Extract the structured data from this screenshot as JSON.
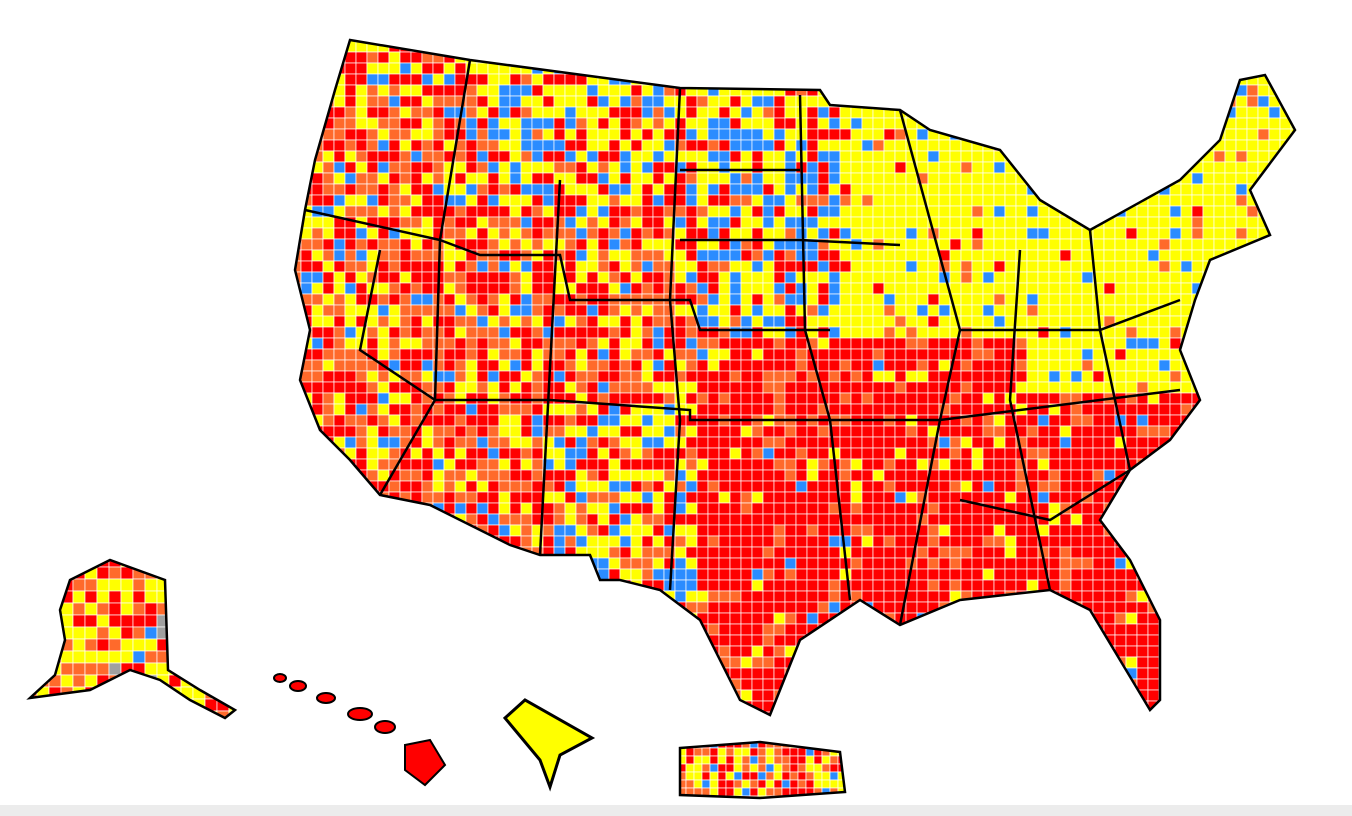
{
  "map": {
    "palette": [
      "#ff0000",
      "#ff6a2b",
      "#ffff00",
      "#2b8cff",
      "#a0a0a0"
    ]
  }
}
